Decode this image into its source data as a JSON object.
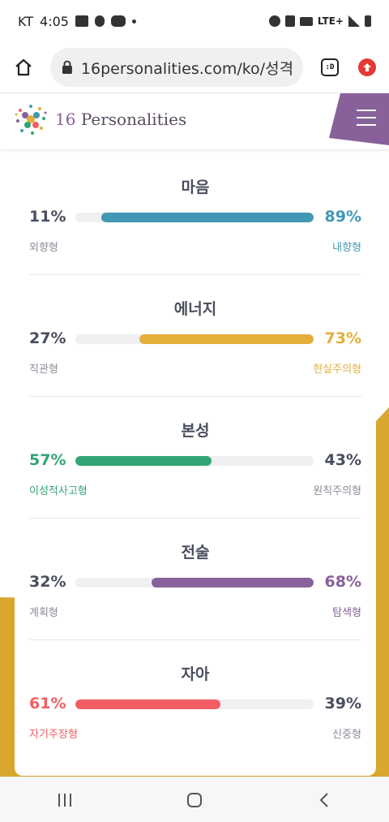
{
  "status_bar": {
    "carrier": "KT",
    "time": "4:05",
    "network": "LTE+"
  },
  "browser": {
    "url": "16personalities.com/ko/성격",
    "tab_icon_label": ":D"
  },
  "site": {
    "logo_number": "16",
    "logo_name": "Personalities"
  },
  "colors": {
    "mind": "#4298b4",
    "energy": "#e4ae3a",
    "nature": "#33a474",
    "tactics": "#88619a",
    "identity": "#f25e62",
    "yellow_bg": "#d9a62e",
    "purple_corner": "#88619a",
    "muted": "#8a8d99",
    "title": "#4a4d5e"
  },
  "traits": [
    {
      "title": "마음",
      "left_pct": "11%",
      "right_pct": "89%",
      "left_label": "외향형",
      "right_label": "내향형",
      "dominant": "right",
      "value": 0.89,
      "color": "#4298b4"
    },
    {
      "title": "에너지",
      "left_pct": "27%",
      "right_pct": "73%",
      "left_label": "직관형",
      "right_label": "현실주의형",
      "dominant": "right",
      "value": 0.73,
      "color": "#e4ae3a"
    },
    {
      "title": "본성",
      "left_pct": "57%",
      "right_pct": "43%",
      "left_label": "이성적사고형",
      "right_label": "원칙주의형",
      "dominant": "left",
      "value": 0.57,
      "color": "#33a474"
    },
    {
      "title": "전술",
      "left_pct": "32%",
      "right_pct": "68%",
      "left_label": "계획형",
      "right_label": "탐색형",
      "dominant": "right",
      "value": 0.68,
      "color": "#88619a"
    },
    {
      "title": "자아",
      "left_pct": "61%",
      "right_pct": "39%",
      "left_label": "자기주장형",
      "right_label": "신중형",
      "dominant": "left",
      "value": 0.61,
      "color": "#f25e62"
    }
  ],
  "nav": {
    "recent": "recent-apps-icon",
    "home": "home-icon",
    "back": "back-icon"
  }
}
